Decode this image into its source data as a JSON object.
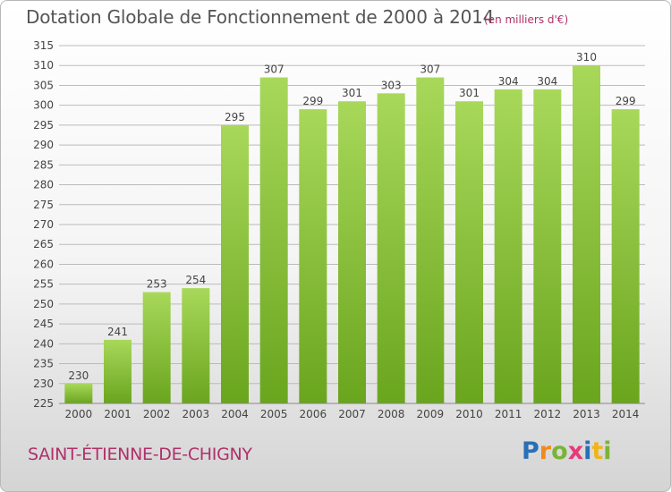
{
  "header": {
    "title": "Dotation Globale de Fonctionnement de 2000 à 2014",
    "subtitle": "(en milliers d'€)"
  },
  "footer": {
    "commune": "SAINT-ÉTIENNE-DE-CHIGNY",
    "logo": {
      "letters": [
        "P",
        "r",
        "o",
        "x",
        "i",
        "t",
        "i"
      ],
      "colors": [
        "#2a6fb6",
        "#f08a1c",
        "#7ab338",
        "#e83a7a",
        "#2a6fb6",
        "#f0b41c",
        "#7ab338"
      ]
    }
  },
  "colors": {
    "bar_light": "#a8d85a",
    "bar_dark": "#6aa51e",
    "grid": "#bbbbbb",
    "axis_text": "#444444",
    "accent": "#b0306a"
  },
  "chart_data": {
    "type": "bar",
    "title": "Dotation Globale de Fonctionnement de 2000 à 2014",
    "subtitle": "(en milliers d'€)",
    "categories": [
      "2000",
      "2001",
      "2002",
      "2003",
      "2004",
      "2005",
      "2006",
      "2007",
      "2008",
      "2009",
      "2010",
      "2011",
      "2012",
      "2013",
      "2014"
    ],
    "values": [
      230,
      241,
      253,
      254,
      295,
      307,
      299,
      301,
      303,
      307,
      301,
      304,
      304,
      310,
      299
    ],
    "ylim": [
      225,
      315
    ],
    "yticks": [
      225,
      230,
      235,
      240,
      245,
      250,
      255,
      260,
      265,
      270,
      275,
      280,
      285,
      290,
      295,
      300,
      305,
      310,
      315
    ],
    "grid": true,
    "data_labels": true
  }
}
